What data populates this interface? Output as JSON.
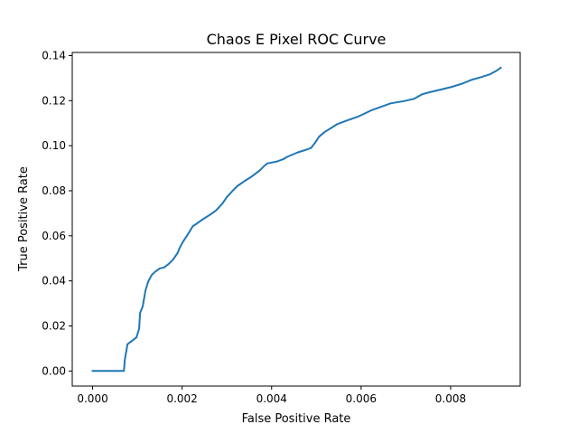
{
  "chart_data": {
    "type": "line",
    "title": "Chaos E Pixel ROC Curve",
    "xlabel": "False Positive Rate",
    "ylabel": "True Positive Rate",
    "xlim": [
      -0.000455,
      0.009555
    ],
    "ylim": [
      -0.0067,
      0.1414
    ],
    "grid": false,
    "x_ticks": [
      0.0,
      0.002,
      0.004,
      0.006,
      0.008
    ],
    "x_tick_labels": [
      "0.000",
      "0.002",
      "0.004",
      "0.006",
      "0.008"
    ],
    "y_ticks": [
      0.0,
      0.02,
      0.04,
      0.06,
      0.08,
      0.1,
      0.12,
      0.14
    ],
    "y_tick_labels": [
      "0.00",
      "0.02",
      "0.04",
      "0.06",
      "0.08",
      "0.10",
      "0.12",
      "0.14"
    ],
    "series": [
      {
        "color": "#1f77b4",
        "x": [
          0.0,
          0.0007,
          0.00072,
          0.00078,
          0.00098,
          0.00104,
          0.00106,
          0.00112,
          0.00118,
          0.00124,
          0.00132,
          0.0014,
          0.0015,
          0.0016,
          0.0017,
          0.0018,
          0.0019,
          0.00194,
          0.00202,
          0.00212,
          0.00224,
          0.00232,
          0.00246,
          0.00262,
          0.00276,
          0.0029,
          0.003,
          0.00314,
          0.00324,
          0.00338,
          0.00354,
          0.00374,
          0.00384,
          0.0039,
          0.00412,
          0.00426,
          0.00434,
          0.00446,
          0.00458,
          0.00474,
          0.00488,
          0.00496,
          0.00506,
          0.00518,
          0.00534,
          0.00546,
          0.00566,
          0.00594,
          0.00624,
          0.00666,
          0.00696,
          0.00718,
          0.00736,
          0.00754,
          0.00784,
          0.00804,
          0.00828,
          0.00846,
          0.00864,
          0.00888,
          0.00902,
          0.00912
        ],
        "y": [
          0.0,
          0.0,
          0.005,
          0.0119,
          0.0149,
          0.0188,
          0.0257,
          0.0287,
          0.0356,
          0.0396,
          0.0426,
          0.0441,
          0.0455,
          0.046,
          0.0475,
          0.0495,
          0.0524,
          0.0544,
          0.0574,
          0.0604,
          0.0643,
          0.0653,
          0.0673,
          0.0693,
          0.0713,
          0.0743,
          0.0772,
          0.0802,
          0.0822,
          0.0841,
          0.0861,
          0.0891,
          0.0911,
          0.0921,
          0.093,
          0.094,
          0.095,
          0.096,
          0.097,
          0.098,
          0.099,
          0.101,
          0.104,
          0.106,
          0.108,
          0.1095,
          0.111,
          0.113,
          0.1158,
          0.1188,
          0.1198,
          0.1208,
          0.1228,
          0.1238,
          0.1252,
          0.1262,
          0.1277,
          0.1292,
          0.1302,
          0.1317,
          0.1332,
          0.1346
        ]
      }
    ]
  }
}
